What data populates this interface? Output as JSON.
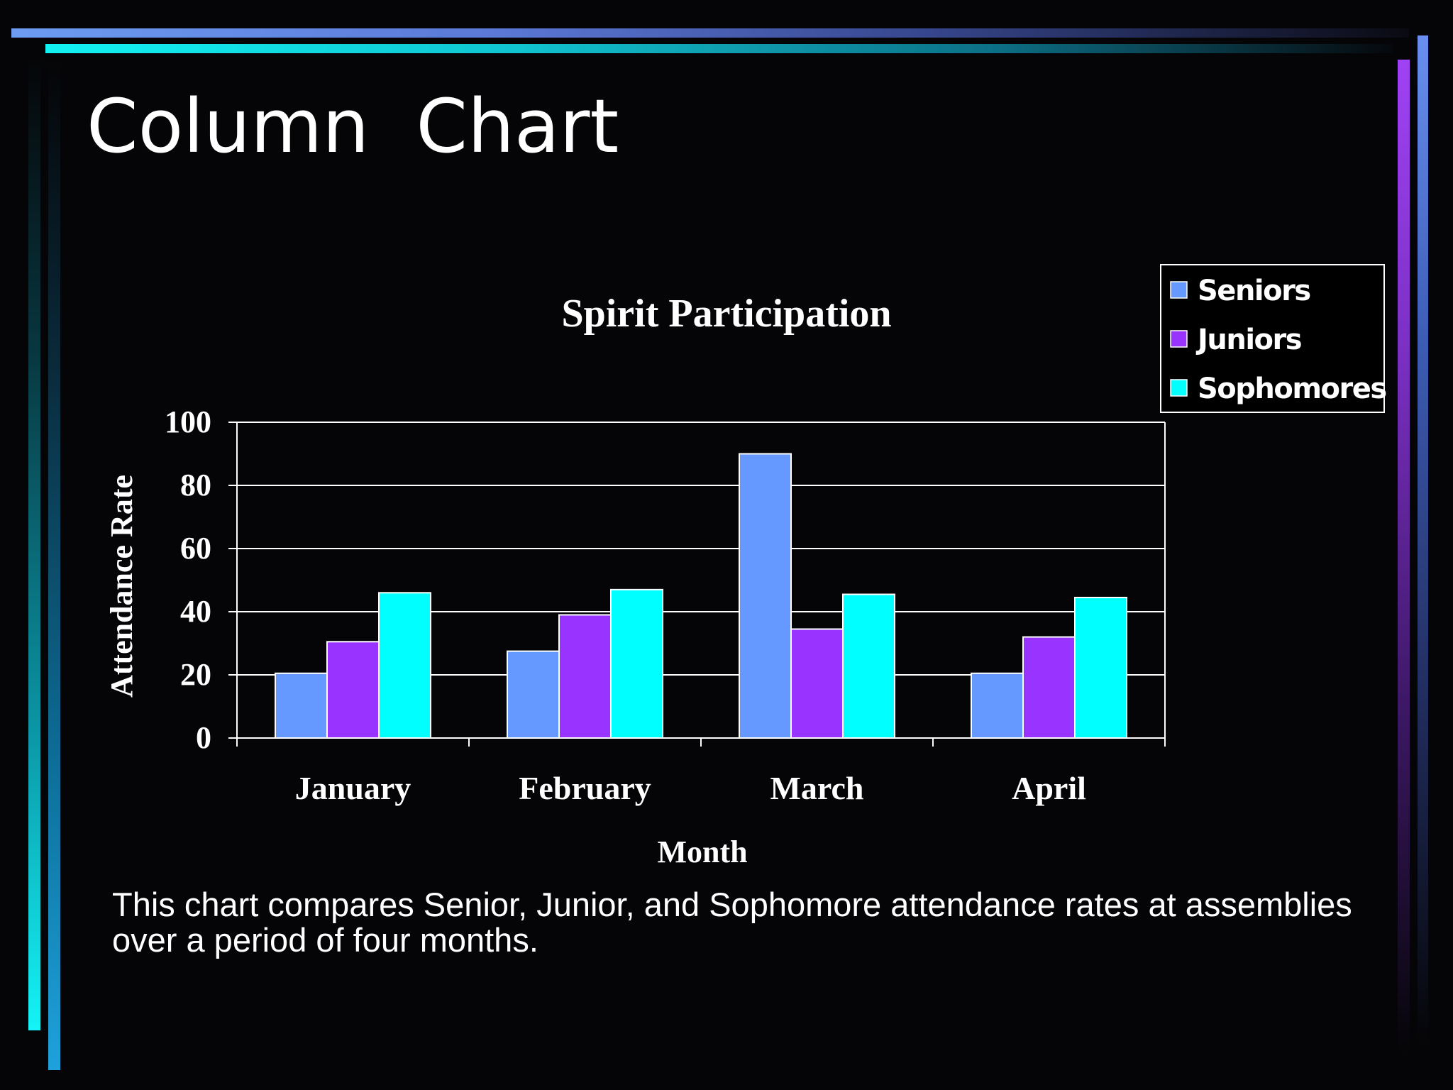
{
  "slide": {
    "title": "Column  Chart",
    "caption": "This chart compares Senior, Junior, and Sophomore attendance rates at assemblies over a period of four months."
  },
  "chart_data": {
    "type": "bar",
    "title": "Spirit Participation",
    "xlabel": "Month",
    "ylabel": "Attendance Rate",
    "categories": [
      "January",
      "February",
      "March",
      "April"
    ],
    "series": [
      {
        "name": "Seniors",
        "values": [
          20.5,
          27.5,
          90,
          20.5
        ],
        "color": "#6699ff"
      },
      {
        "name": "Juniors",
        "values": [
          30.5,
          39,
          34.5,
          32
        ],
        "color": "#9933ff"
      },
      {
        "name": "Sophomores",
        "values": [
          46,
          47,
          45.5,
          44.5
        ],
        "color": "#00ffff"
      }
    ],
    "ylim": [
      0,
      100
    ],
    "yticks": [
      0,
      20,
      40,
      60,
      80,
      100
    ],
    "grid": true,
    "legend_position": "top-right",
    "bar_outline_color": "#ffffff",
    "gridline_color": "#ffffff"
  }
}
